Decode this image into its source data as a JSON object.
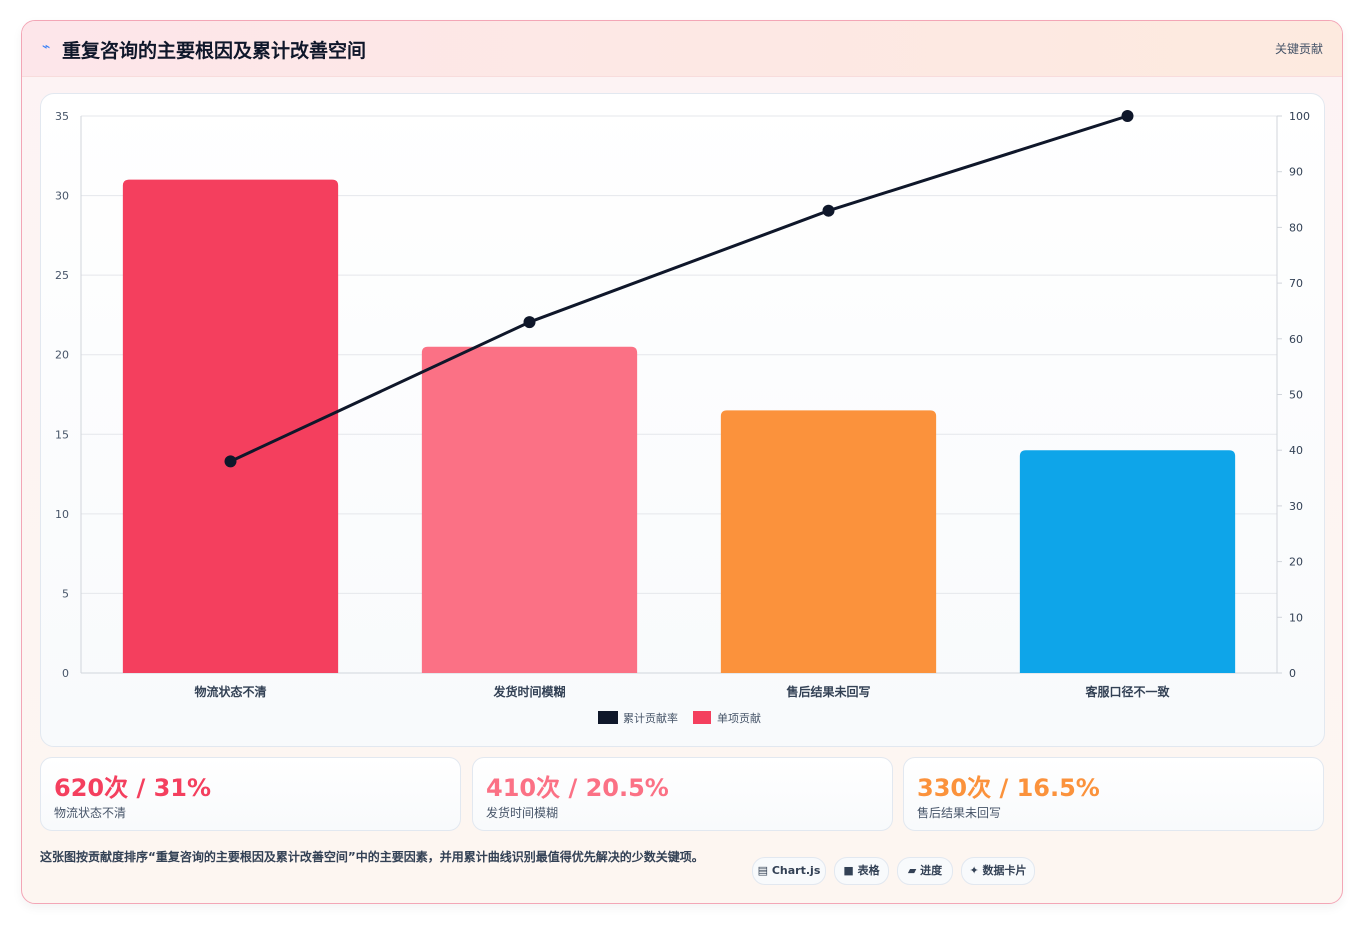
{
  "header": {
    "icon": "lightning-icon",
    "title": "重复咨询的主要根因及累计改善空间",
    "tag": "关键贡献"
  },
  "chart_data": {
    "type": "bar",
    "categories": [
      "物流状态不清",
      "发货时间模糊",
      "售后结果未回写",
      "客服口径不一致"
    ],
    "series": [
      {
        "name": "单项贡献",
        "type": "bar",
        "axis": "left",
        "values": [
          31,
          20.5,
          16.5,
          14
        ],
        "colors": [
          "#f43f5e",
          "#fb7185",
          "#fb923c",
          "#0ea5e9"
        ]
      },
      {
        "name": "累计贡献率",
        "type": "line",
        "axis": "right",
        "values": [
          38,
          63,
          83,
          100
        ],
        "color": "#0f172a"
      }
    ],
    "y_left": {
      "min": 0,
      "max": 35,
      "ticks": [
        0,
        5,
        10,
        15,
        20,
        25,
        30,
        35
      ]
    },
    "y_right": {
      "min": 0,
      "max": 100,
      "ticks": [
        0,
        10,
        20,
        30,
        40,
        50,
        60,
        70,
        80,
        90,
        100
      ]
    },
    "legend": [
      {
        "label": "累计贡献率",
        "color": "#0f172a"
      },
      {
        "label": "单项贡献",
        "color": "#f43f5e"
      }
    ],
    "legend_position": "bottom",
    "grid": true
  },
  "kpis": [
    {
      "value": "620次 / 31%",
      "label": "物流状态不清",
      "color": "#f43f5e"
    },
    {
      "value": "410次 / 20.5%",
      "label": "发货时间模糊",
      "color": "#fb7185"
    },
    {
      "value": "330次 / 16.5%",
      "label": "售后结果未回写",
      "color": "#fb923c"
    }
  ],
  "footer": {
    "description": "这张图按贡献度排序“重复咨询的主要根因及累计改善空间”中的主要因素，并用累计曲线识别最值得优先解决的少数关键项。",
    "pills": [
      {
        "icon": "chart-icon",
        "label": "Chart.js"
      },
      {
        "icon": "table-icon",
        "label": "表格"
      },
      {
        "icon": "progress-icon",
        "label": "进度"
      },
      {
        "icon": "sparkle-icon",
        "label": "数据卡片"
      }
    ]
  }
}
